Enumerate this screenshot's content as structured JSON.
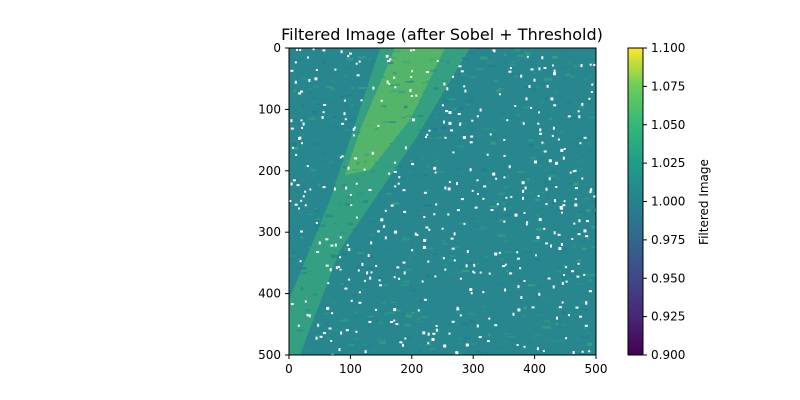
{
  "chart_data": {
    "type": "heatmap",
    "title": "Filtered Image (after Sobel + Threshold)",
    "xlabel": "",
    "ylabel": "",
    "x_range": [
      0,
      500
    ],
    "y_range": [
      500,
      0
    ],
    "x_ticks": [
      "0",
      "100",
      "200",
      "300",
      "400",
      "500"
    ],
    "y_ticks": [
      "0",
      "100",
      "200",
      "300",
      "400",
      "500"
    ],
    "colorbar": {
      "label": "Filtered Image",
      "range": [
        0.9,
        1.1
      ],
      "ticks": [
        "0.900",
        "0.925",
        "0.950",
        "0.975",
        "1.000",
        "1.025",
        "1.050",
        "1.075",
        "1.100"
      ],
      "colormap": "viridis"
    },
    "texture": "noisy field near 1.0 with brighter diagonal band from top centre to lower left; white (thresholded) specks scattered over the image",
    "colors": {
      "cmap_low": "#440154",
      "cmap_mid": "#21918c",
      "cmap_high": "#fde725",
      "speck": "#ffffff"
    }
  }
}
